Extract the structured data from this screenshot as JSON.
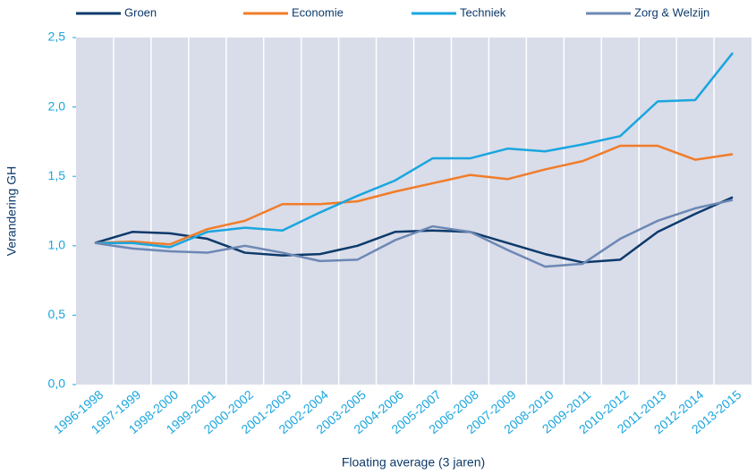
{
  "chart_data": {
    "type": "line",
    "x_label": "Floating average (3 jaren)",
    "y_label": "Verandering GH",
    "categories": [
      "1996-1998",
      "1997-1999",
      "1998-2000",
      "1999-2001",
      "2000-2002",
      "2001-2003",
      "2002-2004",
      "2003-2005",
      "2004-2006",
      "2005-2007",
      "2006-2008",
      "2007-2009",
      "2008-2010",
      "2009-2011",
      "2010-2012",
      "2011-2013",
      "2012-2014",
      "2013-2015"
    ],
    "series": [
      {
        "name": "Groen",
        "color": "#0d3a6b",
        "values": [
          1.02,
          1.1,
          1.09,
          1.05,
          0.95,
          0.93,
          0.94,
          1.0,
          1.1,
          1.11,
          1.1,
          1.02,
          0.94,
          0.88,
          0.9,
          1.1,
          1.23,
          1.35
        ]
      },
      {
        "name": "Economie",
        "color": "#f07d2a",
        "values": [
          1.02,
          1.03,
          1.01,
          1.12,
          1.18,
          1.3,
          1.3,
          1.32,
          1.39,
          1.45,
          1.51,
          1.48,
          1.55,
          1.61,
          1.72,
          1.72,
          1.62,
          1.66
        ]
      },
      {
        "name": "Techniek",
        "color": "#1aa6df",
        "values": [
          1.02,
          1.02,
          0.99,
          1.1,
          1.13,
          1.11,
          1.24,
          1.36,
          1.47,
          1.63,
          1.63,
          1.7,
          1.68,
          1.73,
          1.79,
          2.04,
          2.05,
          2.39
        ]
      },
      {
        "name": "Zorg & Welzijn",
        "color": "#6c88b5",
        "values": [
          1.02,
          0.98,
          0.96,
          0.95,
          1.0,
          0.95,
          0.89,
          0.9,
          1.04,
          1.14,
          1.1,
          0.97,
          0.85,
          0.87,
          1.05,
          1.18,
          1.27,
          1.33
        ]
      }
    ],
    "ylim": [
      0,
      2.5
    ],
    "yticks": [
      {
        "value": 0,
        "label": "0,0"
      },
      {
        "value": 0.5,
        "label": "0,5"
      },
      {
        "value": 1,
        "label": "1,0"
      },
      {
        "value": 1.5,
        "label": "1,5"
      },
      {
        "value": 2,
        "label": "2,0"
      },
      {
        "value": 2.5,
        "label": "2,5"
      }
    ],
    "grid": true,
    "legend": "top"
  }
}
